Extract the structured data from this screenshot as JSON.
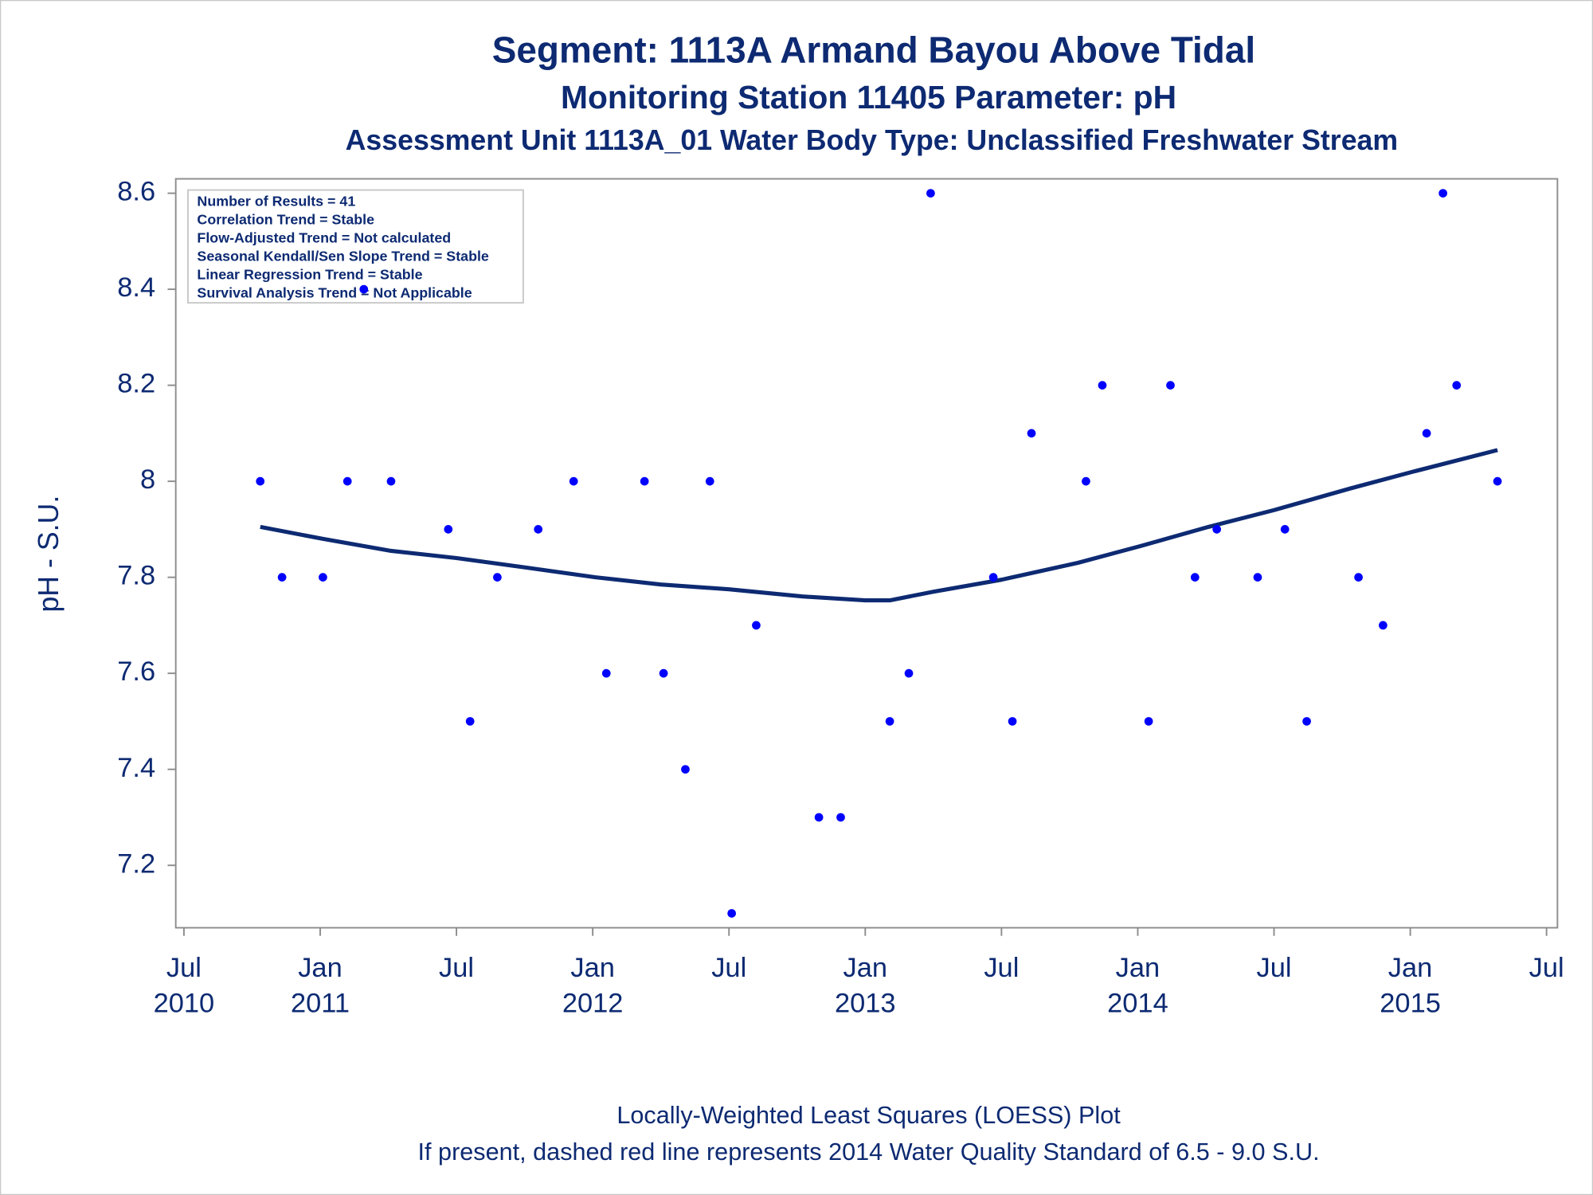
{
  "chart_data": {
    "type": "scatter",
    "title": "Segment: 1113A  Armand Bayou Above Tidal",
    "subtitles": [
      "Monitoring Station 11405 Parameter: pH",
      "Assessment Unit 1113A_01   Water Body Type: Unclassified Freshwater Stream"
    ],
    "annotations": [
      "Number of Results = 41",
      "Correlation Trend = Stable",
      "Flow-Adjusted Trend = Not calculated",
      "Seasonal Kendall/Sen Slope Trend = Stable",
      "Linear Regression Trend = Stable",
      "Survival Analysis Trend = Not Applicable"
    ],
    "ylabel": "pH - S.U.",
    "notes": [
      "Locally-Weighted Least Squares (LOESS) Plot",
      "If present, dashed red line represents 2014 Water Quality Standard of 6.5 - 9.0 S.U."
    ],
    "color": "#0000ff",
    "x": [
      2010.78,
      2010.86,
      2011.01,
      2011.1,
      2011.16,
      2011.26,
      2011.47,
      2011.55,
      2011.65,
      2011.8,
      2011.93,
      2012.05,
      2012.19,
      2012.26,
      2012.34,
      2012.43,
      2012.51,
      2012.6,
      2012.83,
      2012.91,
      2013.09,
      2013.16,
      2013.24,
      2013.47,
      2013.54,
      2013.61,
      2013.81,
      2013.87,
      2014.04,
      2014.12,
      2014.21,
      2014.29,
      2014.44,
      2014.54,
      2014.62,
      2014.81,
      2014.9,
      2015.06,
      2015.12,
      2015.17,
      2015.32
    ],
    "values": [
      8.0,
      7.8,
      7.8,
      8.0,
      8.4,
      8.0,
      7.9,
      7.5,
      7.8,
      7.9,
      8.0,
      7.6,
      8.0,
      7.6,
      7.4,
      8.0,
      7.1,
      7.7,
      7.3,
      7.3,
      7.5,
      7.6,
      8.6,
      7.8,
      7.5,
      8.1,
      8.0,
      8.2,
      7.5,
      8.2,
      7.8,
      7.9,
      7.8,
      7.9,
      7.5,
      7.8,
      7.7,
      8.1,
      8.6,
      8.2,
      8.0
    ],
    "trend": {
      "color": "#0d2a72",
      "x": [
        2010.78,
        2011.01,
        2011.26,
        2011.5,
        2011.76,
        2012.01,
        2012.25,
        2012.5,
        2012.77,
        2013.0,
        2013.09,
        2013.25,
        2013.5,
        2013.78,
        2014.01,
        2014.26,
        2014.5,
        2014.78,
        2015.01,
        2015.32
      ],
      "values": [
        7.905,
        7.88,
        7.855,
        7.84,
        7.82,
        7.8,
        7.785,
        7.775,
        7.76,
        7.752,
        7.752,
        7.77,
        7.795,
        7.83,
        7.865,
        7.905,
        7.94,
        7.985,
        8.02,
        8.065
      ]
    },
    "xlim": [
      2010.47,
      2015.54
    ],
    "xticks": [
      {
        "value": 2010.5,
        "label": "Jul\n2010"
      },
      {
        "value": 2011.0,
        "label": "Jan\n2011"
      },
      {
        "value": 2011.5,
        "label": "Jul"
      },
      {
        "value": 2012.0,
        "label": "Jan\n2012"
      },
      {
        "value": 2012.5,
        "label": "Jul"
      },
      {
        "value": 2013.0,
        "label": "Jan\n2013"
      },
      {
        "value": 2013.5,
        "label": "Jul"
      },
      {
        "value": 2014.0,
        "label": "Jan\n2014"
      },
      {
        "value": 2014.5,
        "label": "Jul"
      },
      {
        "value": 2015.0,
        "label": "Jan\n2015"
      },
      {
        "value": 2015.5,
        "label": "Jul"
      }
    ],
    "ylim": [
      7.07,
      8.63
    ],
    "yticks": [
      7.2,
      7.4,
      7.6,
      7.8,
      8,
      8.2,
      8.4,
      8.6
    ]
  }
}
